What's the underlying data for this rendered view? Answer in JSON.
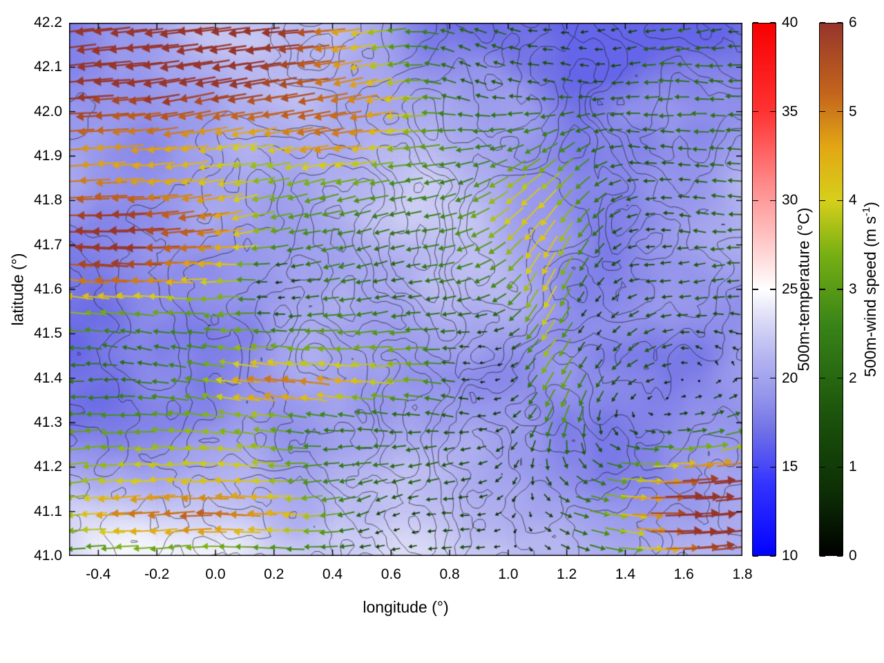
{
  "chart_data": {
    "type": "heatmap",
    "subtype": "temperature field with terrain contours and colored wind-vector quiver overlay",
    "title": "",
    "xlabel": "longitude (°)",
    "ylabel": "latitude (°)",
    "xlim": [
      -0.5,
      1.8
    ],
    "ylim": [
      41.0,
      42.2
    ],
    "grid": true,
    "x_tick_values": [
      -0.4,
      -0.2,
      0.0,
      0.2,
      0.4,
      0.6,
      0.8,
      1.0,
      1.2,
      1.4,
      1.6,
      1.8
    ],
    "x_tick_labels": [
      "-0.4",
      "-0.2",
      "0.0",
      "0.2",
      "0.4",
      "0.6",
      "0.8",
      "1.0",
      "1.2",
      "1.4",
      "1.6",
      "1.8"
    ],
    "y_tick_values": [
      41.0,
      41.1,
      41.2,
      41.3,
      41.4,
      41.5,
      41.6,
      41.7,
      41.8,
      41.9,
      42.0,
      42.1,
      42.2
    ],
    "y_tick_labels": [
      "41.0",
      "41.1",
      "41.2",
      "41.3",
      "41.4",
      "41.5",
      "41.6",
      "41.7",
      "41.8",
      "41.9",
      "42.0",
      "42.1",
      "42.2"
    ],
    "colorbars": [
      {
        "id": "temperature",
        "label": "500m-temperature (°C)",
        "min": 10,
        "max": 40,
        "tick_values": [
          10,
          15,
          20,
          25,
          30,
          35,
          40
        ],
        "tick_labels": [
          "10",
          "15",
          "20",
          "25",
          "30",
          "35",
          "40"
        ],
        "stops": [
          [
            10,
            "#0202ff"
          ],
          [
            14,
            "#3333ff"
          ],
          [
            17,
            "#7070e6"
          ],
          [
            19,
            "#9595ec"
          ],
          [
            21,
            "#b2b2f0"
          ],
          [
            23,
            "#d5d5f6"
          ],
          [
            25,
            "#ffffff"
          ],
          [
            28,
            "#ffc2c2"
          ],
          [
            31,
            "#ff8888"
          ],
          [
            35,
            "#ff3333"
          ],
          [
            40,
            "#f70000"
          ]
        ]
      },
      {
        "id": "wind-speed",
        "label": "500m-wind speed (m s⁻¹)",
        "label_pre": "500m-wind speed (m s",
        "label_sup": "-1",
        "label_post": ")",
        "min": 0,
        "max": 6,
        "tick_values": [
          0,
          1,
          2,
          3,
          4,
          5,
          6
        ],
        "tick_labels": [
          "0",
          "1",
          "2",
          "3",
          "4",
          "5",
          "6"
        ],
        "stops": [
          [
            0,
            "#000000"
          ],
          [
            0.7,
            "#0c2e05"
          ],
          [
            1.6,
            "#1c540c"
          ],
          [
            2.6,
            "#388418"
          ],
          [
            3.4,
            "#78b013"
          ],
          [
            4.0,
            "#d6cf1b"
          ],
          [
            4.6,
            "#e2a714"
          ],
          [
            5.2,
            "#c4651c"
          ],
          [
            6,
            "#96352b"
          ]
        ]
      }
    ],
    "temperature_field": {
      "units": "°C",
      "range_shown": [
        17,
        24
      ],
      "description": "Mostly 19–23 °C lavender/periwinkle shading; lighter near-white (~24 °C) along the south-west and bottom edge; cooler blue patches (~17–18 °C) near the top-right and upper-centre."
    },
    "contours": {
      "style": "thin black terrain/height contour lines, denser over the centre and eastern half of the map"
    },
    "wind_vectors": {
      "arrow_grid": [
        40,
        32
      ],
      "speed_units": "m s⁻¹",
      "speed_range": [
        0,
        6
      ],
      "flow_regions": [
        {
          "area": "north-west (lon < 0.4, lat > 41.8)",
          "direction": "westward",
          "speed": "5–6 (dark red)"
        },
        {
          "area": "west band (lat ≈ 41.6–41.75)",
          "direction": "westward",
          "speed": "3.5–4.5 (yellow/orange)"
        },
        {
          "area": "centre (lon 0.3–1.0)",
          "direction": "variable, mostly westward",
          "speed": "0.5–2.5 (green/dark green)"
        },
        {
          "area": "band lon ≈ 1.1–1.25, lat 41.3–41.8",
          "direction": "southward, curving",
          "speed": "3.5–5 (orange/red)"
        },
        {
          "area": "south bands (lat 41.0–41.3, lon < 0.7)",
          "direction": "westward",
          "speed": "3–5.5 (yellow/orange/red)"
        },
        {
          "area": "south-east corner (lon > 1.2, lat < 41.25)",
          "direction": "eastward",
          "speed": "4.5–6 (orange/dark red)"
        },
        {
          "area": "scattered calm patches (centre-right, near lon 0.9/1.3)",
          "direction": "none",
          "speed": "≈0 (black dots)"
        }
      ]
    }
  }
}
